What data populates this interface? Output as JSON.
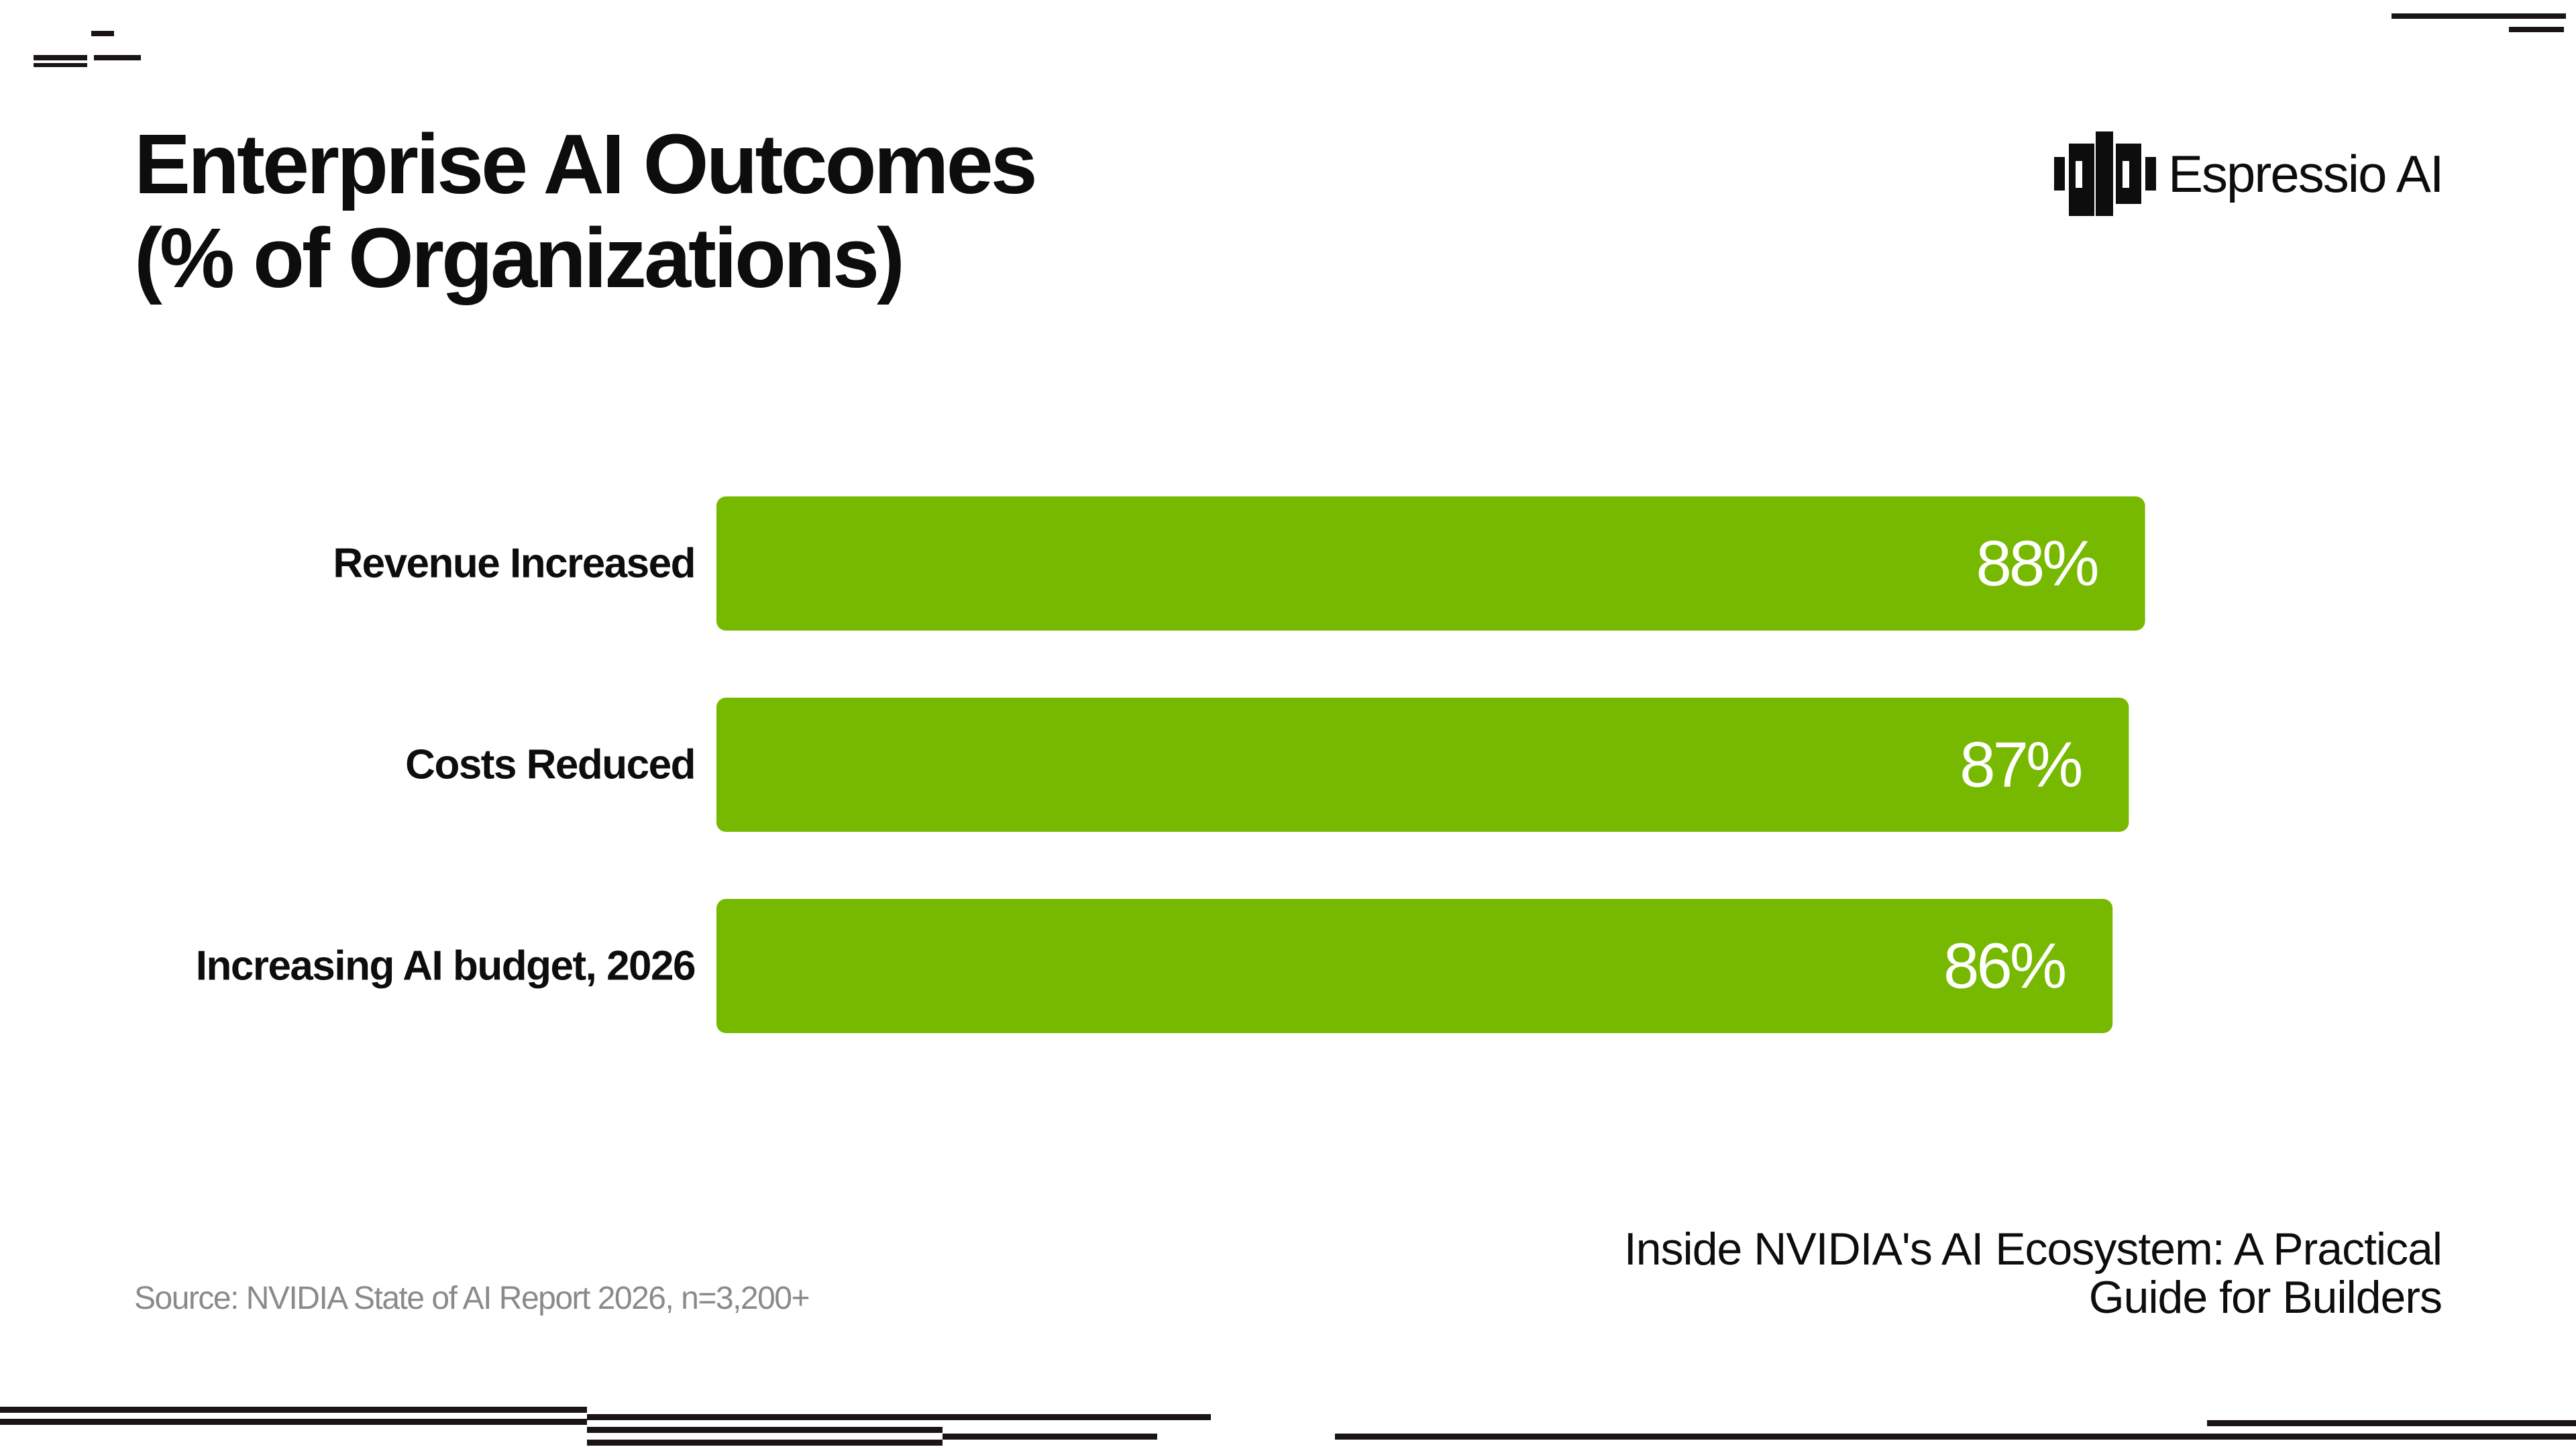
{
  "slide": {
    "title_line1": "Enterprise AI Outcomes",
    "title_line2": "(% of Organizations)",
    "brand": "Espressio AI",
    "source": "Source: NVIDIA State of AI Report 2026, n=3,200+",
    "footer_line1": "Inside NVIDIA's AI Ecosystem: A Practical",
    "footer_line2": "Guide for Builders"
  },
  "colors": {
    "bar": "#76b900",
    "bar_label": "#ffffff",
    "text": "#0d0d0d",
    "source_text": "#8a8a8a",
    "decor": "#1a1414"
  },
  "chart_data": {
    "type": "bar",
    "orientation": "horizontal",
    "categories": [
      "Revenue Increased",
      "Costs Reduced",
      "Increasing AI budget, 2026"
    ],
    "values": [
      88,
      87,
      86
    ],
    "value_format": "{v}%",
    "title": "Enterprise AI Outcomes (% of Organizations)",
    "xlabel": "",
    "ylabel": "",
    "xlim": [
      0,
      100
    ],
    "grid": false,
    "legend": "none"
  }
}
